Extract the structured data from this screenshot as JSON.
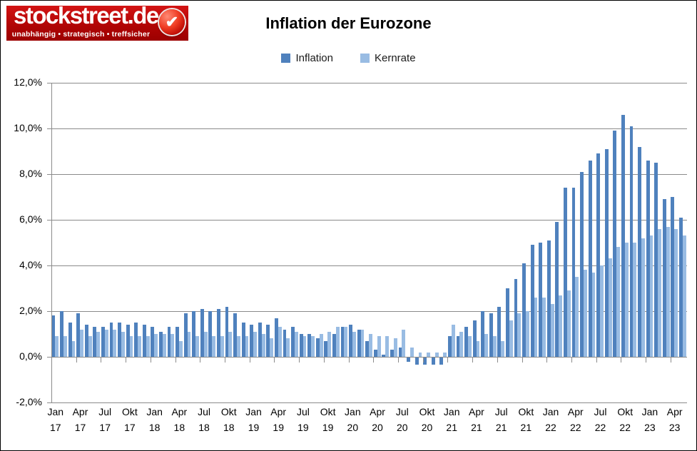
{
  "header": {
    "logo": {
      "name": "stockstreet.de",
      "tagline": "unabhängig • strategisch • treffsicher",
      "badge_icon": "check-icon",
      "bg_color": "#b20505"
    },
    "title": "Inflation der Eurozone"
  },
  "colors": {
    "inflation": "#4F81BD",
    "kernrate": "#99BCE3",
    "grid": "#8b8b8b",
    "background": "#ffffff"
  },
  "chart_data": {
    "type": "bar",
    "title": "Inflation der Eurozone",
    "grid": true,
    "legend_position": "top",
    "ylim": [
      -2,
      12
    ],
    "y_ticks": [
      {
        "value": 12,
        "label": "12,0%"
      },
      {
        "value": 10,
        "label": "10,0%"
      },
      {
        "value": 8,
        "label": "8,0%"
      },
      {
        "value": 6,
        "label": "6,0%"
      },
      {
        "value": 4,
        "label": "4,0%"
      },
      {
        "value": 2,
        "label": "2,0%"
      },
      {
        "value": 0,
        "label": "0,0%"
      },
      {
        "value": -2,
        "label": "-2,0%"
      }
    ],
    "x_tick_every_months": 3,
    "x_tick_labels": [
      {
        "month": "Jan",
        "year": "17"
      },
      {
        "month": "Apr",
        "year": "17"
      },
      {
        "month": "Jul",
        "year": "17"
      },
      {
        "month": "Okt",
        "year": "17"
      },
      {
        "month": "Jan",
        "year": "18"
      },
      {
        "month": "Apr",
        "year": "18"
      },
      {
        "month": "Jul",
        "year": "18"
      },
      {
        "month": "Okt",
        "year": "18"
      },
      {
        "month": "Jan",
        "year": "19"
      },
      {
        "month": "Apr",
        "year": "19"
      },
      {
        "month": "Jul",
        "year": "19"
      },
      {
        "month": "Okt",
        "year": "19"
      },
      {
        "month": "Jan",
        "year": "20"
      },
      {
        "month": "Apr",
        "year": "20"
      },
      {
        "month": "Jul",
        "year": "20"
      },
      {
        "month": "Okt",
        "year": "20"
      },
      {
        "month": "Jan",
        "year": "21"
      },
      {
        "month": "Apr",
        "year": "21"
      },
      {
        "month": "Jul",
        "year": "21"
      },
      {
        "month": "Okt",
        "year": "21"
      },
      {
        "month": "Jan",
        "year": "22"
      },
      {
        "month": "Apr",
        "year": "22"
      },
      {
        "month": "Jul",
        "year": "22"
      },
      {
        "month": "Okt",
        "year": "22"
      },
      {
        "month": "Jan",
        "year": "23"
      },
      {
        "month": "Apr",
        "year": "23"
      }
    ],
    "series": [
      {
        "name": "Inflation",
        "color": "#4F81BD",
        "values": [
          1.8,
          2.0,
          1.5,
          1.9,
          1.4,
          1.3,
          1.3,
          1.5,
          1.5,
          1.4,
          1.5,
          1.4,
          1.3,
          1.1,
          1.3,
          1.3,
          1.9,
          2.0,
          2.1,
          2.0,
          2.1,
          2.2,
          1.9,
          1.5,
          1.4,
          1.5,
          1.4,
          1.7,
          1.2,
          1.3,
          1.0,
          1.0,
          0.8,
          0.7,
          1.0,
          1.3,
          1.4,
          1.2,
          0.7,
          0.3,
          0.1,
          0.3,
          0.4,
          -0.2,
          -0.3,
          -0.3,
          -0.3,
          -0.3,
          0.9,
          0.9,
          1.3,
          1.6,
          2.0,
          1.9,
          2.2,
          3.0,
          3.4,
          4.1,
          4.9,
          5.0,
          5.1,
          5.9,
          7.4,
          7.4,
          8.1,
          8.6,
          8.9,
          9.1,
          9.9,
          10.6,
          10.1,
          9.2,
          8.6,
          8.5,
          6.9,
          7.0,
          6.1
        ]
      },
      {
        "name": "Kernrate",
        "color": "#99BCE3",
        "values": [
          0.9,
          0.9,
          0.7,
          1.2,
          0.9,
          1.1,
          1.2,
          1.2,
          1.1,
          0.9,
          0.9,
          0.9,
          1.0,
          1.0,
          1.0,
          0.7,
          1.1,
          0.9,
          1.1,
          0.9,
          0.9,
          1.1,
          0.9,
          0.9,
          1.1,
          1.0,
          0.8,
          1.3,
          0.8,
          1.1,
          0.9,
          0.9,
          1.0,
          1.1,
          1.3,
          1.3,
          1.1,
          1.2,
          1.0,
          0.9,
          0.9,
          0.8,
          1.2,
          0.4,
          0.2,
          0.2,
          0.2,
          0.2,
          1.4,
          1.1,
          0.9,
          0.7,
          1.0,
          0.9,
          0.7,
          1.6,
          1.9,
          2.0,
          2.6,
          2.6,
          2.3,
          2.7,
          2.9,
          3.5,
          3.8,
          3.7,
          4.0,
          4.3,
          4.8,
          5.0,
          5.0,
          5.2,
          5.3,
          5.6,
          5.7,
          5.6,
          5.3
        ]
      }
    ]
  }
}
